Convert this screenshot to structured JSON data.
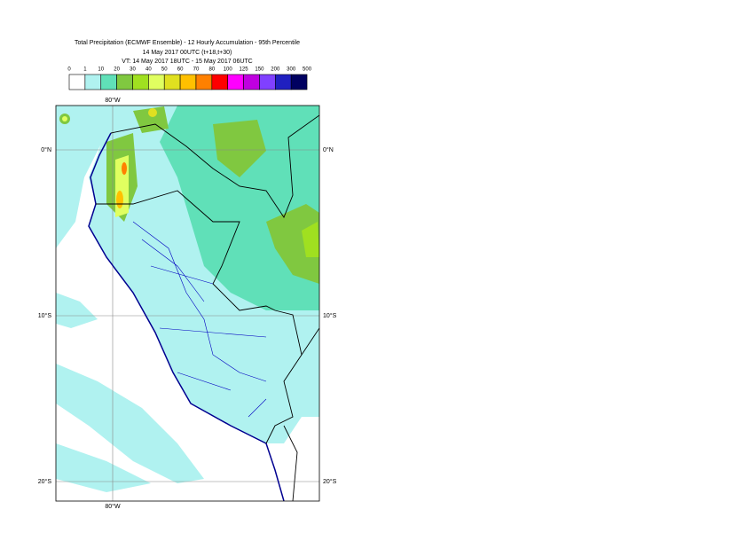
{
  "title": {
    "line1": "Total Precipitation (ECMWF Ensemble) - 12 Hourly Accumulation - 95th Percentile",
    "line2": "14 May 2017 00UTC (t+18,t+30)",
    "line3": "VT: 14 May 2017 18UTC - 15 May 2017 06UTC"
  },
  "legend": {
    "labels": [
      "0",
      "1",
      "10",
      "20",
      "30",
      "40",
      "50",
      "60",
      "70",
      "80",
      "100",
      "125",
      "150",
      "200",
      "300",
      "500"
    ],
    "colors": [
      "#ffffff",
      "#b0f2f0",
      "#60e0b8",
      "#80c840",
      "#a0e020",
      "#e0ff60",
      "#e0e020",
      "#ffc000",
      "#ff8000",
      "#ff0000",
      "#ff00ff",
      "#c000e0",
      "#8040ff",
      "#2020c0",
      "#000060"
    ]
  },
  "map": {
    "lon_labels": [
      "80°W"
    ],
    "lat_labels": [
      "0°N",
      "10°S",
      "20°S"
    ]
  }
}
